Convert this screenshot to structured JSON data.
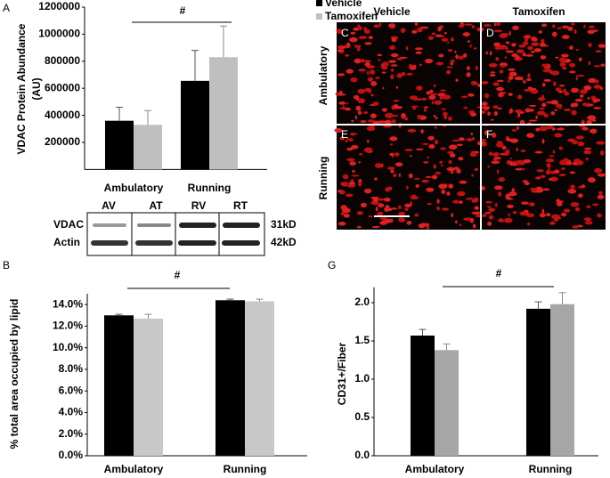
{
  "panel_letters": [
    "A",
    "B",
    "G"
  ],
  "chart_data": [
    {
      "type": "bar",
      "y_label": [
        "VDAC Protein Abundance",
        "(AU)"
      ],
      "annotation": "#",
      "categories": [
        "Ambulatory",
        "Running"
      ],
      "series": [
        {
          "name": "Vehicle",
          "color": "#000000",
          "values": [
            360000,
            655000
          ],
          "errors": [
            100000,
            225000
          ]
        },
        {
          "name": "Tamoxifen",
          "color": "#bfbfbf",
          "values": [
            330000,
            830000
          ],
          "errors": [
            105000,
            230000
          ]
        }
      ],
      "ylim": [
        0,
        1200000
      ],
      "yticks": [
        200000,
        400000,
        600000,
        800000,
        1000000,
        1200000
      ],
      "legend": "top-right"
    },
    {
      "type": "bar",
      "y_label": "% total area occupied by lipid",
      "annotation": "#",
      "categories": [
        "Ambulatory",
        "Running"
      ],
      "series": [
        {
          "color": "#000000",
          "values": [
            13.0,
            14.4
          ],
          "errors": [
            0.1,
            0.1
          ]
        },
        {
          "color": "#c8c8c8",
          "values": [
            12.7,
            14.3
          ],
          "errors": [
            0.4,
            0.2
          ]
        }
      ],
      "ylim": [
        0,
        15
      ],
      "yticks": [
        {
          "value": 0,
          "label": "0.0%"
        },
        {
          "value": 2,
          "label": "2.0%"
        },
        {
          "value": 4,
          "label": "4.0%"
        },
        {
          "value": 6,
          "label": "6.0%"
        },
        {
          "value": 8,
          "label": "8.0%"
        },
        {
          "value": 10,
          "label": "10.0%"
        },
        {
          "value": 12,
          "label": "12.0%"
        },
        {
          "value": 14,
          "label": "14.0%"
        }
      ]
    },
    {
      "type": "bar",
      "y_label": "CD31+/Fiber",
      "annotation": "#",
      "categories": [
        "Ambulatory",
        "Running"
      ],
      "series": [
        {
          "color": "#000000",
          "values": [
            1.57,
            1.92
          ],
          "errors": [
            0.08,
            0.09
          ]
        },
        {
          "color": "#a6a6a6",
          "values": [
            1.38,
            1.98
          ],
          "errors": [
            0.08,
            0.15
          ]
        }
      ],
      "ylim": [
        0,
        2.2
      ],
      "yticks": [
        {
          "value": 0,
          "label": "0.0"
        },
        0.5,
        {
          "value": 1,
          "label": "1.0"
        },
        1.5,
        {
          "value": 2,
          "label": "2.0"
        }
      ]
    }
  ],
  "blot": {
    "lanes": [
      "AV",
      "AT",
      "RV",
      "RT"
    ],
    "rows": [
      "VDAC",
      "Actin"
    ],
    "sizes": [
      "31kD",
      "42kD"
    ]
  },
  "micrographs": {
    "columns": [
      "Vehicle",
      "Tamoxifen"
    ],
    "rows": [
      "Ambulatory",
      "Running"
    ],
    "letters": [
      "C",
      "D",
      "E",
      "F"
    ]
  }
}
